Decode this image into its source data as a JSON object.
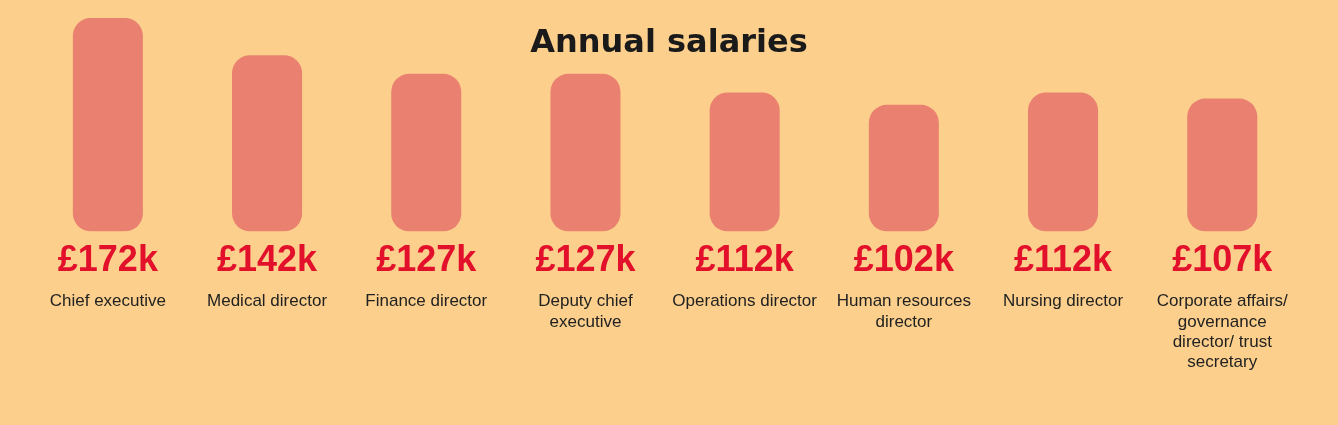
{
  "chart_data": {
    "type": "bar",
    "title": "Annual salaries",
    "categories": [
      "Chief executive",
      "Medical director",
      "Finance director",
      "Deputy chief executive",
      "Operations director",
      "Human resources director",
      "Nursing director",
      "Corporate affairs/ governance director/ trust secretary"
    ],
    "values": [
      172,
      142,
      127,
      127,
      112,
      102,
      112,
      107
    ],
    "value_labels": [
      "£172k",
      "£142k",
      "£127k",
      "£127k",
      "£112k",
      "£102k",
      "£112k",
      "£107k"
    ],
    "color": "#ea8070"
  }
}
